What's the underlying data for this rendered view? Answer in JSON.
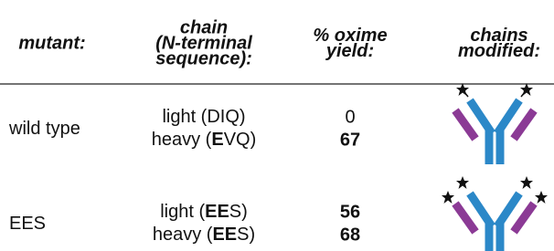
{
  "header": {
    "columns": [
      {
        "lines": [
          "mutant:"
        ]
      },
      {
        "lines": [
          "chain",
          "(N-terminal",
          "sequence):"
        ]
      },
      {
        "lines": [
          "% oxime",
          "yield:"
        ]
      },
      {
        "lines": [
          "chains",
          "modified:"
        ]
      }
    ]
  },
  "rows": [
    {
      "mutant": "wild type",
      "chains": [
        {
          "parts": [
            {
              "text": "light (DIQ)",
              "bold": false
            }
          ],
          "yield": 0,
          "yield_bold": false
        },
        {
          "parts": [
            {
              "text": "heavy (",
              "bold": false
            },
            {
              "text": "E",
              "bold": true
            },
            {
              "text": "VQ)",
              "bold": false
            }
          ],
          "yield": 67,
          "yield_bold": true
        }
      ]
    },
    {
      "mutant": "EES",
      "chains": [
        {
          "parts": [
            {
              "text": "light (",
              "bold": false
            },
            {
              "text": "EE",
              "bold": true
            },
            {
              "text": "S)",
              "bold": false
            }
          ],
          "yield": 56,
          "yield_bold": true
        },
        {
          "parts": [
            {
              "text": "heavy (",
              "bold": false
            },
            {
              "text": "EE",
              "bold": true
            },
            {
              "text": "S)",
              "bold": false
            }
          ],
          "yield": 68,
          "yield_bold": true
        }
      ]
    }
  ]
}
